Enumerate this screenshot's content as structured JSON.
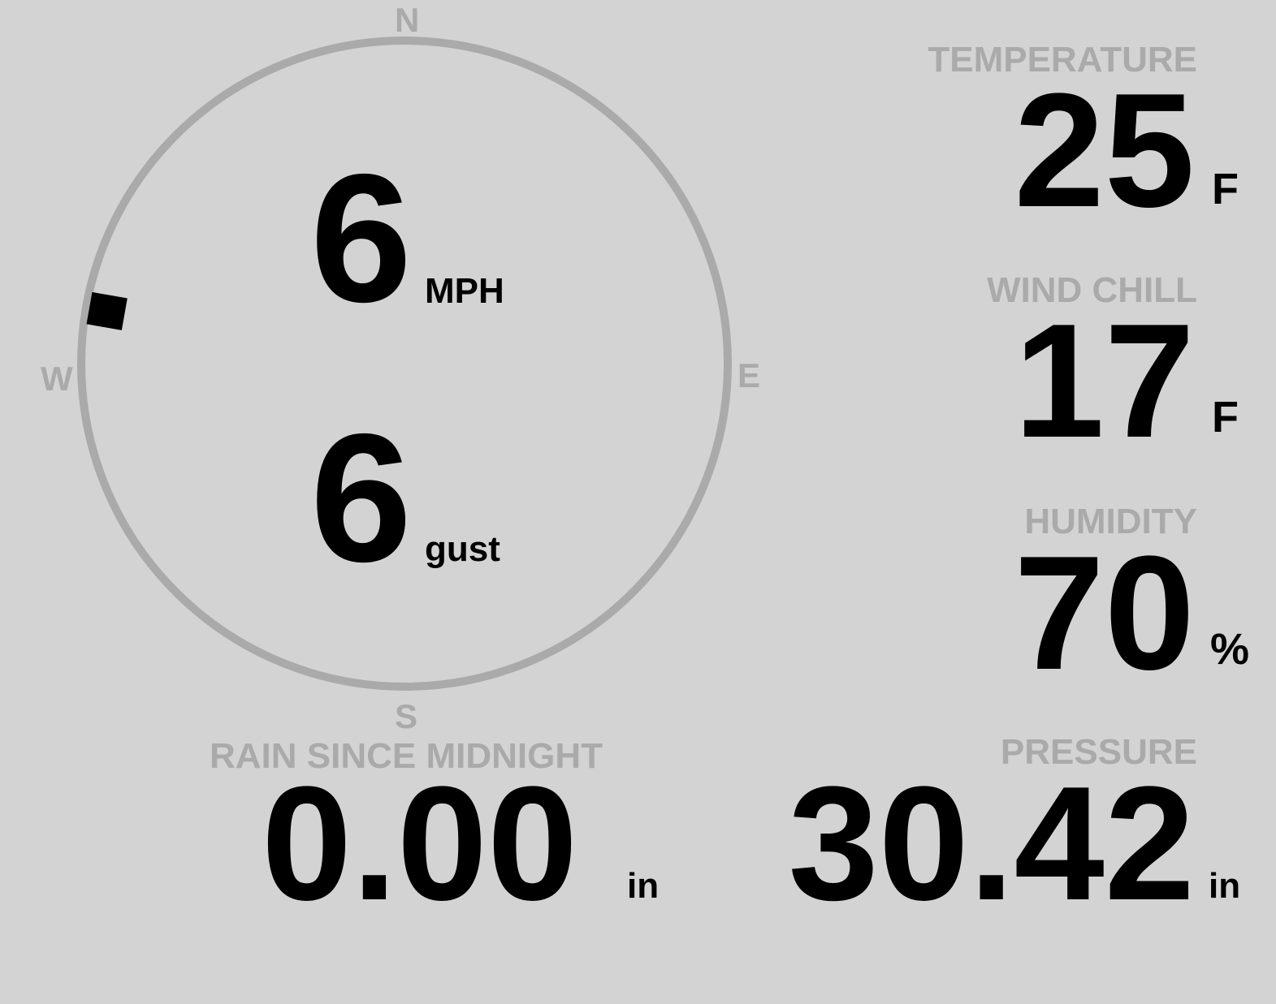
{
  "compass": {
    "north": "N",
    "south": "S",
    "east": "E",
    "west": "W",
    "wind_direction_deg": 280,
    "speed": "6",
    "speed_unit": "MPH",
    "gust": "6",
    "gust_unit": "gust",
    "ring_color": "#aaaaaa"
  },
  "temperature": {
    "label": "TEMPERATURE",
    "value": "25",
    "unit": "F"
  },
  "wind_chill": {
    "label": "WIND CHILL",
    "value": "17",
    "unit": "F"
  },
  "humidity": {
    "label": "HUMIDITY",
    "value": "70",
    "unit": "%"
  },
  "rain": {
    "label": "RAIN SINCE MIDNIGHT",
    "value": "0.00",
    "unit": "in"
  },
  "pressure": {
    "label": "PRESSURE",
    "value": "30.42",
    "unit": "in"
  },
  "colors": {
    "background": "#d3d3d3",
    "label": "#aaaaaa",
    "value": "#000000"
  }
}
